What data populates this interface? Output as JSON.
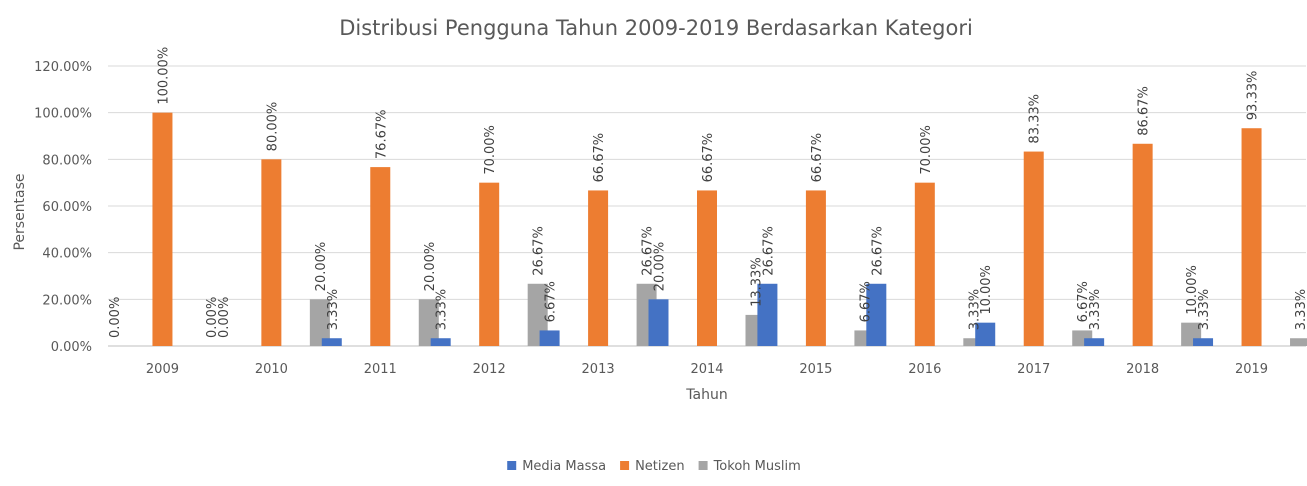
{
  "chart_data": {
    "type": "bar",
    "title": "Distribusi Pengguna Tahun 2009-2019 Berdasarkan Kategori",
    "xlabel": "Tahun",
    "ylabel": "Persentase",
    "categories": [
      "2009",
      "2010",
      "2011",
      "2012",
      "2013",
      "2014",
      "2015",
      "2016",
      "2017",
      "2018",
      "2019"
    ],
    "series": [
      {
        "name": "Media Massa",
        "color": "#4472c4",
        "values": [
          0.0,
          0.0,
          3.33,
          3.33,
          6.67,
          20.0,
          26.67,
          26.67,
          10.0,
          3.33,
          3.33
        ],
        "labels": [
          "0.00%",
          "0.00%",
          "3.33%",
          "3.33%",
          "6.67%",
          "20.00%",
          "26.67%",
          "26.67%",
          "10.00%",
          "3.33%",
          "3.33%"
        ]
      },
      {
        "name": "Netizen",
        "color": "#ed7d31",
        "values": [
          100.0,
          80.0,
          76.67,
          70.0,
          66.67,
          66.67,
          66.67,
          70.0,
          83.33,
          86.67,
          93.33
        ],
        "labels": [
          "100.00%",
          "80.00%",
          "76.67%",
          "70.00%",
          "66.67%",
          "66.67%",
          "66.67%",
          "70.00%",
          "83.33%",
          "86.67%",
          "93.33%"
        ]
      },
      {
        "name": "Tokoh Muslim",
        "color": "#a5a5a5",
        "values": [
          0.0,
          20.0,
          20.0,
          26.67,
          26.67,
          13.33,
          6.67,
          3.33,
          6.67,
          10.0,
          3.33
        ],
        "labels": [
          "0.00%",
          "20.00%",
          "20.00%",
          "26.67%",
          "26.67%",
          "13.33%",
          "6.67%",
          "3.33%",
          "6.67%",
          "10.00%",
          "3.33%"
        ]
      }
    ],
    "ylim": [
      0,
      120
    ],
    "yticks": [
      0,
      20,
      40,
      60,
      80,
      100,
      120
    ],
    "ytick_labels": [
      "0.00%",
      "20.00%",
      "40.00%",
      "60.00%",
      "80.00%",
      "100.00%",
      "120.00%"
    ],
    "grid": true,
    "legend_position": "bottom",
    "data_label_orientation": "vertical"
  }
}
